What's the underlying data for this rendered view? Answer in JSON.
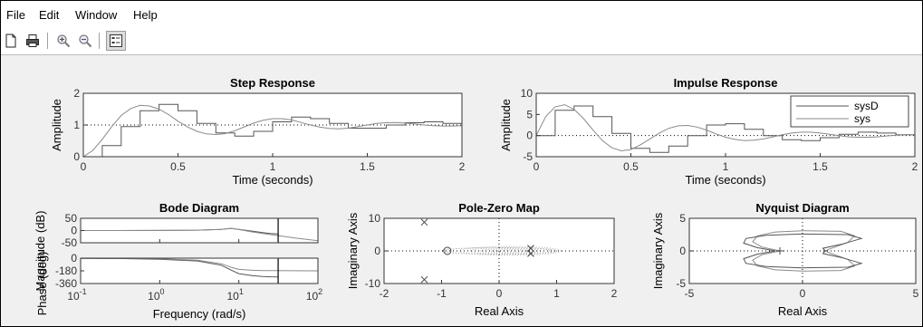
{
  "menu": [
    "File",
    "Edit",
    "Window",
    "Help"
  ],
  "toolbar": {
    "buttons": [
      {
        "name": "new-figure-icon"
      },
      {
        "name": "print-icon"
      },
      {
        "name": "zoom-in-icon"
      },
      {
        "name": "zoom-out-icon"
      },
      {
        "name": "plot-browser-icon"
      }
    ]
  },
  "colors": {
    "sysD": "#555555",
    "sys": "#8a8a8a",
    "axes": "#333333",
    "background": "#f0f0f0"
  },
  "chart_data": [
    {
      "id": "step",
      "type": "line",
      "title": "Step Response",
      "xlabel": "Time (seconds)",
      "ylabel": "Amplitude",
      "xlim": [
        0,
        2
      ],
      "ylim": [
        0,
        2
      ],
      "xticks": [
        0,
        0.5,
        1,
        1.5,
        2
      ],
      "xticklabels": [
        "0",
        "0.5",
        "1",
        "1.5",
        "2"
      ],
      "yticks": [
        0,
        1,
        2
      ],
      "yticklabels": [
        "0",
        "1",
        "2"
      ],
      "reference": 1,
      "series": [
        {
          "key": "sysD",
          "style": "stairs",
          "x": [
            0,
            0.1,
            0.2,
            0.3,
            0.4,
            0.5,
            0.6,
            0.7,
            0.8,
            0.9,
            1.0,
            1.1,
            1.2,
            1.3,
            1.4,
            1.5,
            1.6,
            1.7,
            1.8,
            1.9,
            2.0
          ],
          "y": [
            0,
            0.35,
            0.95,
            1.45,
            1.65,
            1.45,
            1.05,
            0.75,
            0.65,
            0.8,
            1.1,
            1.25,
            1.2,
            1.05,
            0.9,
            0.9,
            1.0,
            1.07,
            1.1,
            1.05,
            1.0
          ]
        },
        {
          "key": "sys",
          "style": "line",
          "x": [
            0,
            0.05,
            0.1,
            0.15,
            0.2,
            0.25,
            0.3,
            0.35,
            0.4,
            0.45,
            0.5,
            0.55,
            0.6,
            0.65,
            0.7,
            0.75,
            0.8,
            0.85,
            0.9,
            0.95,
            1.0,
            1.05,
            1.1,
            1.15,
            1.2,
            1.25,
            1.3,
            1.35,
            1.4,
            1.45,
            1.5,
            1.55,
            1.6,
            1.65,
            1.7,
            1.75,
            1.8,
            1.85,
            1.9,
            1.95,
            2.0
          ],
          "y": [
            0,
            0.2,
            0.55,
            0.95,
            1.3,
            1.52,
            1.62,
            1.6,
            1.5,
            1.33,
            1.12,
            0.94,
            0.8,
            0.72,
            0.7,
            0.73,
            0.82,
            0.94,
            1.06,
            1.15,
            1.2,
            1.2,
            1.16,
            1.08,
            1.0,
            0.93,
            0.89,
            0.88,
            0.9,
            0.95,
            1.0,
            1.05,
            1.07,
            1.08,
            1.06,
            1.03,
            1.0,
            0.98,
            0.97,
            0.97,
            0.98
          ]
        }
      ]
    },
    {
      "id": "impulse",
      "type": "line",
      "title": "Impulse Response",
      "xlabel": "Time (seconds)",
      "ylabel": "Amplitude",
      "xlim": [
        0,
        2
      ],
      "ylim": [
        -5,
        10
      ],
      "xticks": [
        0,
        0.5,
        1,
        1.5,
        2
      ],
      "xticklabels": [
        "0",
        "0.5",
        "1",
        "1.5",
        "2"
      ],
      "yticks": [
        -5,
        0,
        5,
        10
      ],
      "yticklabels": [
        "-5",
        "0",
        "5",
        "10"
      ],
      "reference": 0,
      "legend": {
        "placement": "top-right",
        "entries": [
          "sysD",
          "sys"
        ]
      },
      "series": [
        {
          "key": "sysD",
          "style": "stairs",
          "x": [
            0,
            0.1,
            0.2,
            0.3,
            0.4,
            0.5,
            0.6,
            0.7,
            0.8,
            0.9,
            1.0,
            1.1,
            1.2,
            1.3,
            1.4,
            1.5,
            1.6,
            1.7,
            1.8,
            1.9,
            2.0
          ],
          "y": [
            0,
            6.0,
            7.0,
            4.5,
            0.5,
            -3.0,
            -4.0,
            -2.5,
            0,
            2.5,
            2.8,
            1.5,
            0,
            -1.0,
            -1.2,
            -0.5,
            0.3,
            0.8,
            0.6,
            0.2,
            0
          ]
        },
        {
          "key": "sys",
          "style": "line",
          "x": [
            0,
            0.05,
            0.1,
            0.15,
            0.2,
            0.25,
            0.3,
            0.35,
            0.4,
            0.45,
            0.5,
            0.55,
            0.6,
            0.65,
            0.7,
            0.75,
            0.8,
            0.85,
            0.9,
            0.95,
            1.0,
            1.05,
            1.1,
            1.15,
            1.2,
            1.25,
            1.3,
            1.35,
            1.4,
            1.45,
            1.5,
            1.55,
            1.6,
            1.65,
            1.7,
            1.75,
            1.8,
            1.85,
            1.9,
            1.95,
            2.0
          ],
          "y": [
            0,
            4.5,
            6.8,
            7.3,
            6.2,
            4.0,
            1.3,
            -1.2,
            -2.9,
            -3.6,
            -3.3,
            -2.2,
            -0.8,
            0.6,
            1.7,
            2.3,
            2.4,
            2.0,
            1.3,
            0.4,
            -0.4,
            -0.9,
            -1.2,
            -1.1,
            -0.8,
            -0.3,
            0.2,
            0.6,
            0.8,
            0.8,
            0.6,
            0.3,
            0,
            -0.3,
            -0.4,
            -0.4,
            -0.3,
            -0.1,
            0.1,
            0.2,
            0.2
          ]
        }
      ]
    },
    {
      "id": "bode",
      "type": "line",
      "title": "Bode Diagram",
      "xlabel": "Frequency  (rad/s)",
      "ylabel_mag": "Magnitude (dB)",
      "ylabel_phase": "Phase (deg)",
      "xscale": "log",
      "xlim": [
        0.1,
        100
      ],
      "xticks": [
        0.1,
        1,
        10,
        100
      ],
      "xtick_exponents": [
        "-1",
        "0",
        "1",
        "2"
      ],
      "xtick_base": "10",
      "mag_ylim": [
        -50,
        50
      ],
      "mag_yticks": [
        50,
        0,
        -50
      ],
      "mag_yticklabels": [
        "50",
        "0",
        "-50"
      ],
      "phase_ylim": [
        -360,
        0
      ],
      "phase_yticks": [
        0,
        -180,
        -360
      ],
      "phase_yticklabels": [
        "0",
        "-180",
        "-360"
      ],
      "nyquist_frequency": 31.4,
      "series": [
        {
          "key": "sysD",
          "freq": [
            0.1,
            0.3,
            1,
            3,
            6,
            8,
            10,
            15,
            20,
            25,
            31.4
          ],
          "mag": [
            0,
            0,
            0.2,
            1.5,
            5,
            9,
            5,
            -3,
            -8,
            -12,
            -14
          ],
          "phase": [
            -2,
            -5,
            -15,
            -40,
            -100,
            -170,
            -220,
            -250,
            -260,
            -265,
            -268
          ]
        },
        {
          "key": "sys",
          "freq": [
            0.1,
            0.3,
            1,
            3,
            6,
            8,
            10,
            15,
            20,
            30,
            50,
            100
          ],
          "mag": [
            0,
            0,
            0.2,
            1.5,
            5,
            9,
            4,
            -6,
            -12,
            -20,
            -30,
            -42
          ],
          "phase": [
            -1,
            -3,
            -10,
            -30,
            -80,
            -130,
            -160,
            -172,
            -176,
            -178,
            -179,
            -180
          ]
        }
      ]
    },
    {
      "id": "pzmap",
      "type": "scatter",
      "title": "Pole-Zero Map",
      "xlabel": "Real Axis",
      "ylabel": "Imaginary Axis",
      "xlim": [
        -2,
        2
      ],
      "ylim": [
        -10,
        10
      ],
      "xticks": [
        -2,
        -1,
        0,
        1,
        2
      ],
      "xticklabels": [
        "-2",
        "-1",
        "0",
        "1",
        "2"
      ],
      "yticks": [
        -10,
        0,
        10
      ],
      "yticklabels": [
        "-10",
        "0",
        "10"
      ],
      "poles": [
        {
          "re": -1.3,
          "im": 8.8
        },
        {
          "re": -1.3,
          "im": -8.8
        },
        {
          "re": 0.55,
          "im": 0.8
        },
        {
          "re": 0.55,
          "im": -0.8
        }
      ],
      "zeros": [
        {
          "re": -0.9,
          "im": 0
        }
      ]
    },
    {
      "id": "nyquist",
      "type": "line",
      "title": "Nyquist Diagram",
      "xlabel": "Real Axis",
      "ylabel": "Imaginary Axis",
      "xlim": [
        -5,
        5
      ],
      "ylim": [
        -5,
        5
      ],
      "xticks": [
        -5,
        0,
        5
      ],
      "xticklabels": [
        "-5",
        "0",
        "5"
      ],
      "yticks": [
        -5,
        0,
        5
      ],
      "yticklabels": [
        "-5",
        "0",
        "5"
      ],
      "critical_point": [
        -1,
        0
      ],
      "series": [
        {
          "key": "sys",
          "re": [
            1,
            1.2,
            2.0,
            2.3,
            1.7,
            0,
            -1.2,
            -2.0,
            -2.2,
            -1.8,
            -1.0
          ],
          "im": [
            0,
            -0.3,
            -1.3,
            -2.3,
            -3.0,
            -3.1,
            -2.9,
            -2.3,
            -1.4,
            -0.6,
            0
          ]
        },
        {
          "key": "sysD",
          "re": [
            1,
            0.9,
            1.7,
            2.6,
            2.0,
            0,
            -1.6,
            -2.5,
            -2.6,
            -2.0,
            -1.2
          ],
          "im": [
            0,
            -0.4,
            -1.0,
            -1.9,
            -2.5,
            -2.6,
            -2.4,
            -1.9,
            -1.2,
            -0.5,
            0
          ]
        }
      ]
    }
  ]
}
